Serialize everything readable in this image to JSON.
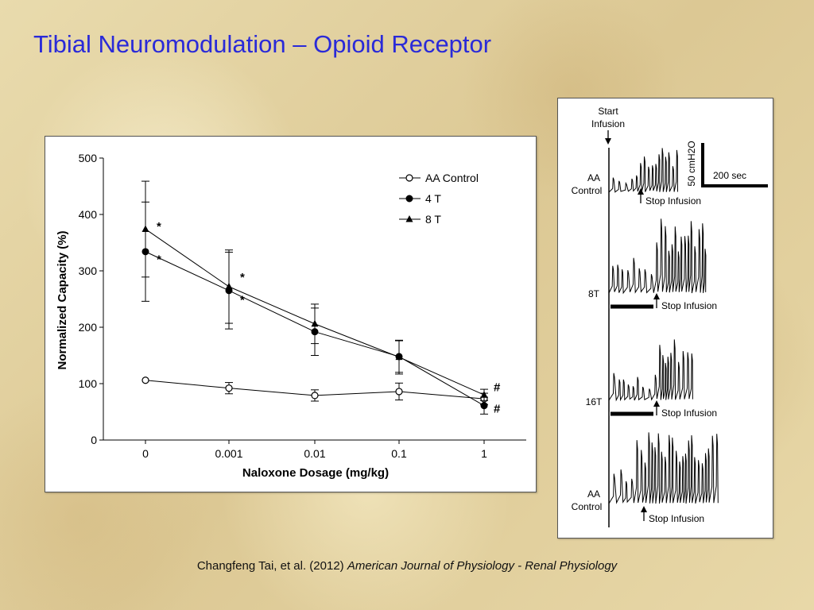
{
  "slide": {
    "title": "Tibial Neuromodulation – Opioid Receptor"
  },
  "citation": {
    "authors": "Changfeng Tai, et al. (2012)",
    "journal": "American Journal of  Physiology - Renal  Physiology"
  },
  "colors": {
    "title": "#2a2ad8",
    "ink": "#000000",
    "panel_bg": "#ffffff"
  },
  "chart_data": {
    "type": "line",
    "xlabel": "Naloxone Dosage (mg/kg)",
    "ylabel": "Normalized Capacity (%)",
    "categories": [
      "0",
      "0.001",
      "0.01",
      "0.1",
      "1"
    ],
    "ylim": [
      0,
      500
    ],
    "yticks": [
      0,
      100,
      200,
      300,
      400,
      500
    ],
    "grid": false,
    "legend_position": "top-right",
    "series": [
      {
        "name": "AA Control",
        "marker": "open-circle",
        "values": [
          106,
          92,
          79,
          86,
          73
        ],
        "errors": [
          0,
          10,
          10,
          15,
          10
        ]
      },
      {
        "name": "4 T",
        "marker": "filled-circle",
        "values": [
          334,
          265,
          192,
          148,
          61
        ],
        "errors": [
          88,
          68,
          42,
          28,
          15
        ]
      },
      {
        "name": "8 T",
        "marker": "filled-triangle",
        "values": [
          374,
          272,
          206,
          147,
          80
        ],
        "errors": [
          85,
          65,
          35,
          30,
          10
        ]
      }
    ],
    "annotations": [
      {
        "text": "*",
        "category": "0",
        "value": 380
      },
      {
        "text": "*",
        "category": "0",
        "value": 322
      },
      {
        "text": "*",
        "category": "0.001",
        "value": 290
      },
      {
        "text": "*",
        "category": "0.001",
        "value": 250
      },
      {
        "text": "#",
        "category": "1",
        "value": 95
      },
      {
        "text": "#",
        "category": "1",
        "value": 57
      }
    ]
  },
  "trace_figure": {
    "start_label_line1": "Start",
    "start_label_line2": "Infusion",
    "scale_y_label": "50 cmH2O",
    "scale_x_label": "200 sec",
    "rows": [
      {
        "label_line1": "AA",
        "label_line2": "Control",
        "stop_label": "Stop Infusion"
      },
      {
        "label_line1": "8T",
        "label_line2": "",
        "stop_label": "Stop Infusion"
      },
      {
        "label_line1": "16T",
        "label_line2": "",
        "stop_label": "Stop Infusion"
      },
      {
        "label_line1": "AA",
        "label_line2": "Control",
        "stop_label": "Stop Infusion"
      }
    ]
  }
}
